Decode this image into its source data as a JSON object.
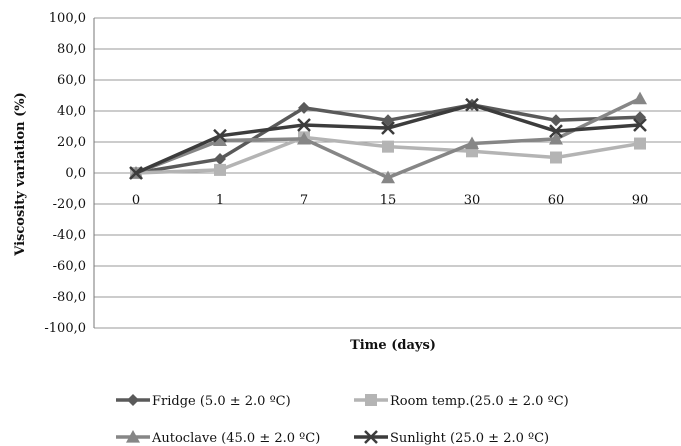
{
  "chart_data": {
    "type": "line",
    "title": "",
    "xlabel": "Time (days)",
    "ylabel": "Viscosity variation  (%)",
    "categories": [
      "0",
      "1",
      "7",
      "15",
      "30",
      "60",
      "90"
    ],
    "ylim": [
      -100,
      100
    ],
    "yticks": [
      "100,0",
      "80,0",
      "60,0",
      "40,0",
      "20,0",
      "0,0",
      "-20,0",
      "-40,0",
      "-60,0",
      "-80,0",
      "-100,0"
    ],
    "grid": true,
    "legend_position": "bottom",
    "series": [
      {
        "name": "Fridge (5.0 ± 2.0 ºC)",
        "marker": "diamond",
        "color": "#5a5a5a",
        "values": [
          0,
          9,
          42,
          34,
          44,
          34,
          36
        ]
      },
      {
        "name": "Room temp.(25.0 ± 2.0 ºC)",
        "marker": "square",
        "color": "#b4b4b4",
        "values": [
          0,
          2,
          23,
          17,
          14,
          10,
          19
        ]
      },
      {
        "name": "Autoclave (45.0 ± 2.0 ºC)",
        "marker": "triangle",
        "color": "#868686",
        "values": [
          0,
          21,
          22,
          -3,
          19,
          22,
          48
        ]
      },
      {
        "name": "Sunlight (25.0 ± 2.0 ºC)",
        "marker": "x",
        "color": "#3c3c3c",
        "values": [
          0,
          24,
          31,
          29,
          44,
          27,
          31
        ]
      }
    ]
  }
}
